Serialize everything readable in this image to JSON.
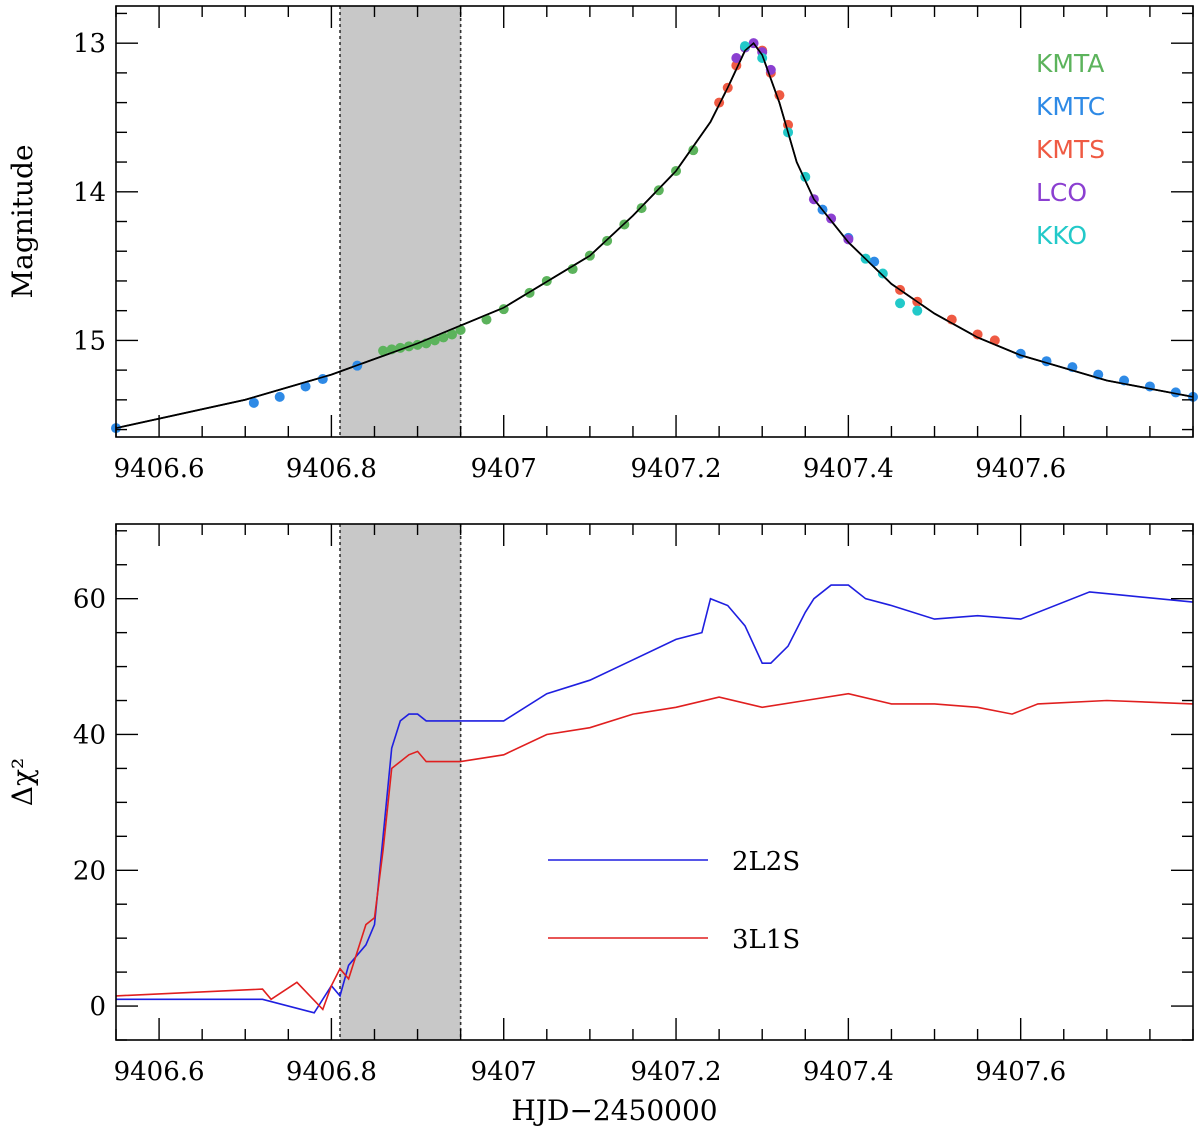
{
  "chart_data": [
    {
      "type": "scatter",
      "title": "",
      "xlabel": "",
      "ylabel": "Magnitude",
      "xlim": [
        9406.55,
        9407.8
      ],
      "ylim": [
        15.65,
        12.75
      ],
      "y_inverted": true,
      "xticks": [
        9406.6,
        9406.8,
        9407,
        9407.2,
        9407.4,
        9407.6
      ],
      "xtick_labels": [
        "9406.6",
        "9406.8",
        "9407",
        "9407.2",
        "9407.4",
        "9407.6"
      ],
      "yticks": [
        13,
        14,
        15
      ],
      "ytick_labels": [
        "13",
        "14",
        "15"
      ],
      "grid": false,
      "legend_position": "top-right",
      "shaded_region": {
        "x0": 9406.81,
        "x1": 9406.95,
        "color": "#c8c8c8"
      },
      "model": {
        "name": "",
        "color": "#000000",
        "x": [
          9406.55,
          9406.7,
          9406.8,
          9406.9,
          9407.0,
          9407.1,
          9407.15,
          9407.2,
          9407.24,
          9407.26,
          9407.28,
          9407.29,
          9407.3,
          9407.32,
          9407.34,
          9407.36,
          9407.4,
          9407.45,
          9407.5,
          9407.55,
          9407.6,
          9407.7,
          9407.8
        ],
        "y": [
          15.59,
          15.4,
          15.23,
          15.02,
          14.78,
          14.43,
          14.16,
          13.86,
          13.53,
          13.3,
          13.05,
          13.0,
          13.08,
          13.4,
          13.8,
          14.05,
          14.34,
          14.62,
          14.82,
          14.98,
          15.1,
          15.27,
          15.38
        ]
      },
      "series": [
        {
          "name": "KMTA",
          "color": "#5cb35c",
          "x": [
            9406.86,
            9406.87,
            9406.88,
            9406.89,
            9406.9,
            9406.91,
            9406.92,
            9406.93,
            9406.94,
            9406.95,
            9406.98,
            9407.0,
            9407.03,
            9407.05,
            9407.08,
            9407.1,
            9407.12,
            9407.14,
            9407.16,
            9407.18,
            9407.2,
            9407.22
          ],
          "y": [
            15.07,
            15.06,
            15.05,
            15.04,
            15.03,
            15.02,
            15.0,
            14.98,
            14.96,
            14.93,
            14.86,
            14.79,
            14.68,
            14.6,
            14.52,
            14.43,
            14.33,
            14.22,
            14.11,
            13.99,
            13.86,
            13.72
          ]
        },
        {
          "name": "KMTC",
          "color": "#2e8ae6",
          "x": [
            9406.55,
            9406.71,
            9406.74,
            9406.77,
            9406.79,
            9406.83,
            9407.37,
            9407.4,
            9407.43,
            9407.6,
            9407.63,
            9407.66,
            9407.69,
            9407.72,
            9407.75,
            9407.78,
            9407.8
          ],
          "y": [
            15.59,
            15.42,
            15.38,
            15.31,
            15.26,
            15.17,
            14.12,
            14.31,
            14.47,
            15.09,
            15.14,
            15.18,
            15.23,
            15.27,
            15.31,
            15.35,
            15.38
          ]
        },
        {
          "name": "KMTS",
          "color": "#ef5a43",
          "x": [
            9407.25,
            9407.26,
            9407.27,
            9407.3,
            9407.31,
            9407.32,
            9407.33,
            9407.46,
            9407.48,
            9407.52,
            9407.55,
            9407.57
          ],
          "y": [
            13.4,
            13.3,
            13.15,
            13.05,
            13.2,
            13.35,
            13.55,
            14.66,
            14.74,
            14.86,
            14.96,
            15.0
          ]
        },
        {
          "name": "LCO",
          "color": "#8b3fd1",
          "x": [
            9407.27,
            9407.28,
            9407.29,
            9407.3,
            9407.31,
            9407.36,
            9407.38,
            9407.4
          ],
          "y": [
            13.1,
            13.03,
            13.0,
            13.06,
            13.18,
            14.05,
            14.18,
            14.32
          ]
        },
        {
          "name": "KKO",
          "color": "#22c9c9",
          "x": [
            9407.28,
            9407.3,
            9407.33,
            9407.35,
            9407.42,
            9407.44,
            9407.46,
            9407.48
          ],
          "y": [
            13.02,
            13.1,
            13.6,
            13.9,
            14.45,
            14.55,
            14.75,
            14.8
          ]
        }
      ]
    },
    {
      "type": "line",
      "title": "",
      "xlabel": "HJD−2450000",
      "ylabel": "Δχ²",
      "xlim": [
        9406.55,
        9407.8
      ],
      "ylim": [
        -5,
        71
      ],
      "xticks": [
        9406.6,
        9406.8,
        9407,
        9407.2,
        9407.4,
        9407.6
      ],
      "xtick_labels": [
        "9406.6",
        "9406.8",
        "9407",
        "9407.2",
        "9407.4",
        "9407.6"
      ],
      "yticks": [
        0,
        20,
        40,
        60
      ],
      "ytick_labels": [
        "0",
        "20",
        "40",
        "60"
      ],
      "grid": false,
      "legend_position": "center-bottom",
      "shaded_region": {
        "x0": 9406.81,
        "x1": 9406.95,
        "color": "#c8c8c8"
      },
      "series": [
        {
          "name": "2L2S",
          "color": "#1f1fe0",
          "x": [
            9406.55,
            9406.72,
            9406.78,
            9406.8,
            9406.81,
            9406.82,
            9406.84,
            9406.85,
            9406.86,
            9406.87,
            9406.88,
            9406.89,
            9406.9,
            9406.91,
            9406.92,
            9406.95,
            9407.0,
            9407.05,
            9407.1,
            9407.15,
            9407.2,
            9407.23,
            9407.24,
            9407.26,
            9407.28,
            9407.3,
            9407.31,
            9407.33,
            9407.35,
            9407.36,
            9407.38,
            9407.4,
            9407.42,
            9407.45,
            9407.5,
            9407.55,
            9407.6,
            9407.68,
            9407.72,
            9407.8
          ],
          "y": [
            1,
            1,
            -1,
            3,
            1.5,
            6,
            9,
            12,
            25,
            38,
            42,
            43,
            43,
            42,
            42,
            42,
            42,
            46,
            48,
            51,
            54,
            55,
            60,
            59,
            56,
            50.5,
            50.5,
            53,
            58,
            60,
            62,
            62,
            60,
            59,
            57,
            57.5,
            57,
            61,
            60.5,
            59.5
          ]
        },
        {
          "name": "3L1S",
          "color": "#e01f1f",
          "x": [
            9406.55,
            9406.72,
            9406.73,
            9406.76,
            9406.79,
            9406.8,
            9406.81,
            9406.82,
            9406.84,
            9406.85,
            9406.86,
            9406.87,
            9406.88,
            9406.89,
            9406.9,
            9406.91,
            9406.92,
            9406.95,
            9407.0,
            9407.05,
            9407.1,
            9407.15,
            9407.2,
            9407.25,
            9407.3,
            9407.35,
            9407.4,
            9407.45,
            9407.5,
            9407.55,
            9407.59,
            9407.62,
            9407.7,
            9407.8
          ],
          "y": [
            1.5,
            2.5,
            1,
            3.5,
            -0.5,
            3,
            5.5,
            4,
            12,
            13,
            23,
            35,
            36,
            37,
            37.5,
            36,
            36,
            36,
            37,
            40,
            41,
            43,
            44,
            45.5,
            44,
            45,
            46,
            44.5,
            44.5,
            44,
            43,
            44.5,
            45,
            44.5
          ]
        }
      ]
    }
  ],
  "legend_swatches": {
    "marker_label": "scatter marker",
    "line_label": "line"
  }
}
